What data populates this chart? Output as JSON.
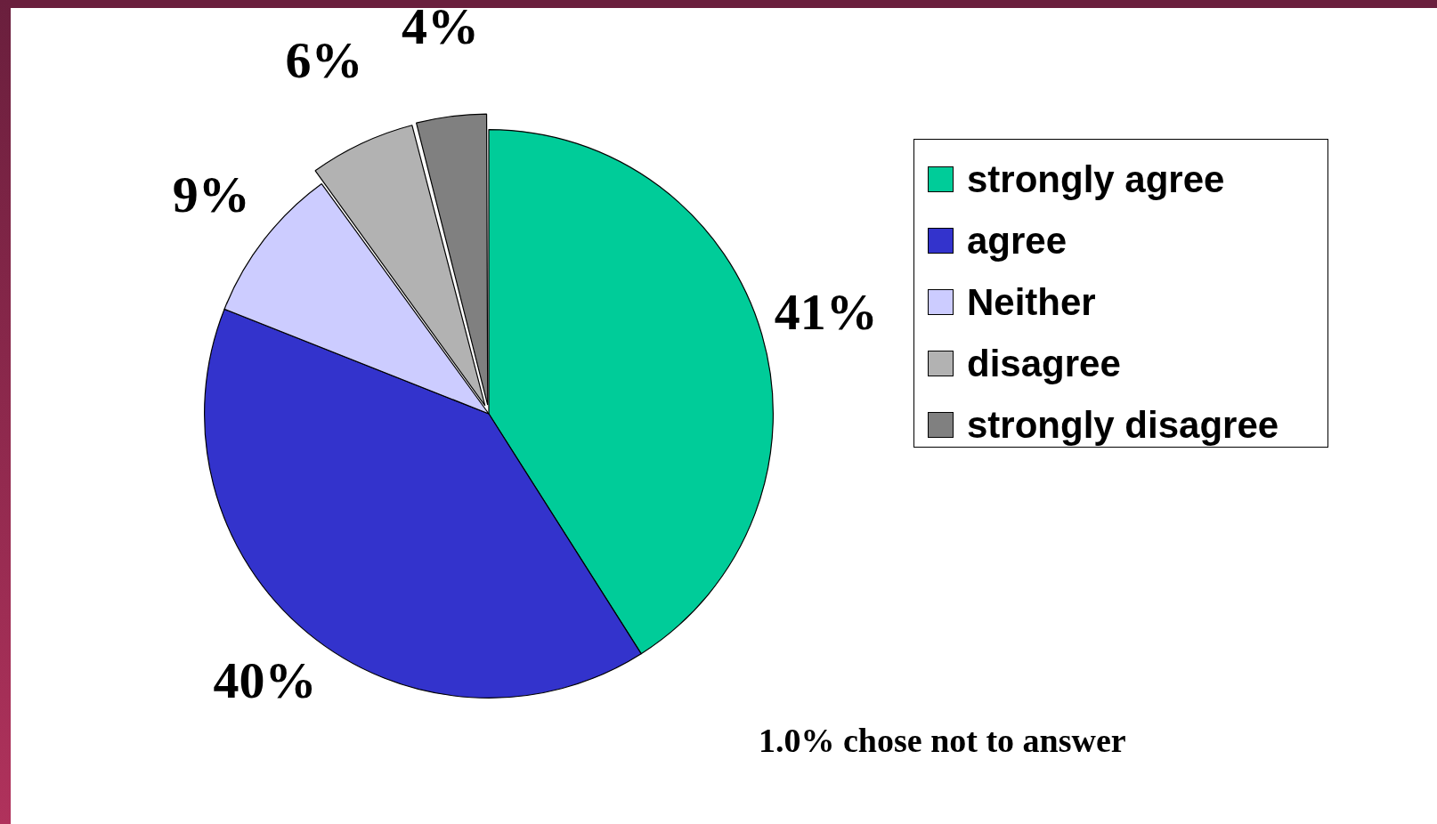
{
  "chart_data": {
    "type": "pie",
    "categories": [
      "strongly agree",
      "agree",
      "Neither",
      "disagree",
      "strongly disagree"
    ],
    "values": [
      41,
      40,
      9,
      6,
      4
    ],
    "value_labels": [
      "41%",
      "40%",
      "9%",
      "6%",
      "4%"
    ],
    "colors": [
      "#00cc99",
      "#3333cc",
      "#ccccff",
      "#b2b2b2",
      "#808080"
    ],
    "legend": "right",
    "annotations": [
      "1.0% chose not to answer"
    ]
  }
}
